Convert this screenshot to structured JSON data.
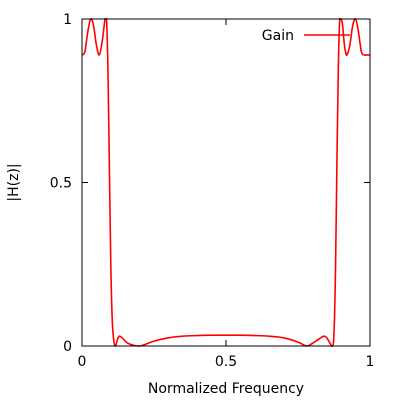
{
  "chart_data": {
    "type": "line",
    "xlabel": "Normalized Frequency",
    "ylabel": "|H(z)|",
    "xlim": [
      0,
      1
    ],
    "ylim": [
      0,
      1
    ],
    "x_ticks": [
      {
        "value": 0,
        "label": "0"
      },
      {
        "value": 0.5,
        "label": "0.5"
      },
      {
        "value": 1,
        "label": "1"
      }
    ],
    "y_ticks": [
      {
        "value": 0,
        "label": "0"
      },
      {
        "value": 0.5,
        "label": "0.5"
      },
      {
        "value": 1,
        "label": "1"
      }
    ],
    "grid": false,
    "legend_position": "top-right",
    "series": [
      {
        "name": "Gain",
        "color": "#ff0000",
        "x": [
          0,
          0.01,
          0.02,
          0.03,
          0.04,
          0.05,
          0.06,
          0.07,
          0.08,
          0.085,
          0.09,
          0.095,
          0.1,
          0.105,
          0.11,
          0.115,
          0.12,
          0.125,
          0.13,
          0.14,
          0.15,
          0.16,
          0.18,
          0.2,
          0.22,
          0.25,
          0.3,
          0.35,
          0.4,
          0.45,
          0.5,
          0.55,
          0.6,
          0.65,
          0.7,
          0.75,
          0.78,
          0.8,
          0.82,
          0.84,
          0.85,
          0.86,
          0.87,
          0.875,
          0.88,
          0.885,
          0.89,
          0.895,
          0.9,
          0.905,
          0.91,
          0.915,
          0.92,
          0.93,
          0.94,
          0.95,
          0.96,
          0.97,
          0.98,
          0.99,
          1.0
        ],
        "values": [
          0.89,
          0.9,
          0.96,
          1.0,
          0.98,
          0.92,
          0.89,
          0.93,
          1.0,
          1.0,
          0.85,
          0.55,
          0.25,
          0.08,
          0.02,
          0.0,
          0.01,
          0.025,
          0.03,
          0.025,
          0.015,
          0.008,
          0.002,
          0.0,
          0.005,
          0.015,
          0.025,
          0.03,
          0.032,
          0.033,
          0.033,
          0.033,
          0.032,
          0.03,
          0.025,
          0.012,
          0.0,
          0.008,
          0.02,
          0.03,
          0.025,
          0.01,
          0.0,
          0.04,
          0.22,
          0.55,
          0.85,
          1.0,
          1.0,
          0.98,
          0.93,
          0.9,
          0.89,
          0.92,
          0.98,
          1.0,
          0.96,
          0.9,
          0.89,
          0.89,
          0.89
        ]
      }
    ]
  }
}
